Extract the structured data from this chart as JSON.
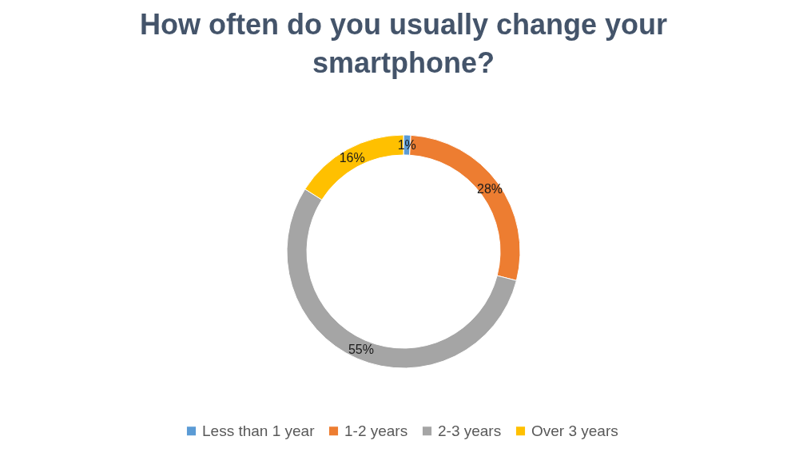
{
  "chart_data": {
    "type": "donut",
    "title": "How often do you usually change your smartphone?",
    "categories": [
      "Less than 1 year",
      "1-2 years",
      "2-3 years",
      "Over 3 years"
    ],
    "values": [
      1,
      28,
      55,
      16
    ],
    "colors": [
      "#5b9bd5",
      "#ed7d31",
      "#a5a5a5",
      "#ffc000"
    ],
    "value_labels": [
      "1%",
      "28%",
      "55%",
      "16%"
    ],
    "legend": "bottom"
  }
}
